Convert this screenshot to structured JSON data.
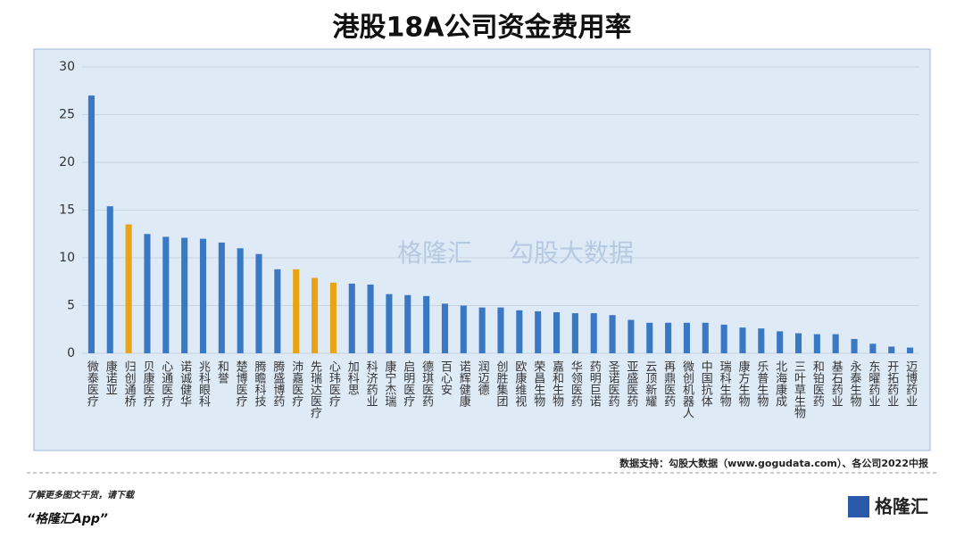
{
  "chart_data": {
    "type": "bar",
    "title": "港股18A公司资金费用率",
    "categories": [
      "微泰医疗",
      "康诺亚",
      "归创通桥",
      "贝康医疗",
      "心通医疗",
      "诺诚健华",
      "兆科眼科",
      "和誉",
      "楚博医疗",
      "腾瞻科技",
      "腾盛博药",
      "沛嘉医疗",
      "先瑞达医疗",
      "心玮医疗",
      "加科思",
      "科济药业",
      "康宁杰瑞",
      "启明医疗",
      "德琪医药",
      "百心安",
      "诺辉健康",
      "润迈德",
      "创胜集团",
      "欧康维视",
      "荣昌生物",
      "嘉和生物",
      "华领医药",
      "药明巨诺",
      "圣诺医药",
      "亚盛医药",
      "云顶新耀",
      "再鼎医药",
      "微创机器人",
      "中国抗体",
      "瑞科生物",
      "康方生物",
      "乐普生物",
      "北海康成",
      "三叶草生物",
      "和铂医药",
      "基石药业",
      "永泰生物",
      "东曜药业",
      "开拓药业",
      "迈博药业"
    ],
    "values": [
      27,
      15.4,
      13.5,
      12.5,
      12.2,
      12.1,
      12,
      11.6,
      11,
      10.4,
      8.8,
      8.8,
      7.9,
      7.4,
      7.3,
      7.2,
      6.2,
      6.1,
      6,
      5.2,
      5,
      4.8,
      4.8,
      4.5,
      4.4,
      4.3,
      4.2,
      4.2,
      4,
      3.5,
      3.2,
      3.2,
      3.2,
      3.2,
      3,
      2.7,
      2.6,
      2.3,
      2.1,
      2,
      2,
      1.5,
      1,
      0.7,
      0.6
    ],
    "colors": [
      "#3a78c4",
      "#3a78c4",
      "#e8a415",
      "#3a78c4",
      "#3a78c4",
      "#3a78c4",
      "#3a78c4",
      "#3a78c4",
      "#3a78c4",
      "#3a78c4",
      "#3a78c4",
      "#e8a415",
      "#e8a415",
      "#e8a415",
      "#3a78c4",
      "#3a78c4",
      "#3a78c4",
      "#3a78c4",
      "#3a78c4",
      "#3a78c4",
      "#3a78c4",
      "#3a78c4",
      "#3a78c4",
      "#3a78c4",
      "#3a78c4",
      "#3a78c4",
      "#3a78c4",
      "#3a78c4",
      "#3a78c4",
      "#3a78c4",
      "#3a78c4",
      "#3a78c4",
      "#3a78c4",
      "#3a78c4",
      "#3a78c4",
      "#3a78c4",
      "#3a78c4",
      "#3a78c4",
      "#3a78c4",
      "#3a78c4",
      "#3a78c4",
      "#3a78c4",
      "#3a78c4",
      "#3a78c4",
      "#3a78c4"
    ],
    "ylim": [
      0,
      30
    ],
    "yticks": [
      0,
      5,
      10,
      15,
      20,
      25,
      30
    ],
    "grid": true,
    "source": "数据支持：勾股大数据（www.gogudata.com）、各公司2022中报",
    "watermark": [
      "格隆汇",
      "勾股大数据"
    ]
  },
  "footer": {
    "line1": "了解更多图文干货，请下载",
    "line2": "“格隆汇App”",
    "logo": "格隆汇"
  }
}
